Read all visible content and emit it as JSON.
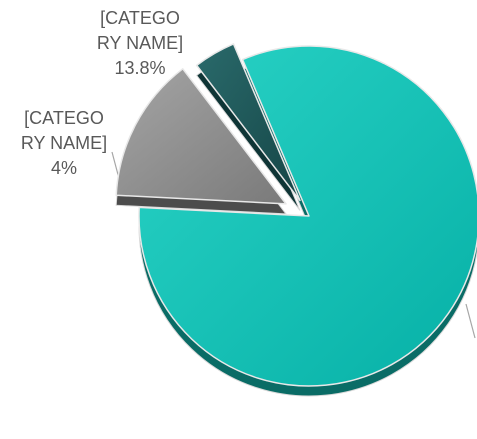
{
  "chart_data": {
    "type": "pie",
    "style": "3d-exploded",
    "title": "",
    "legend": "none",
    "slices": [
      {
        "name": "",
        "value": 82.2,
        "label_line1": "",
        "label_line2": "",
        "label_pct": "",
        "color": "#19C1B4"
      },
      {
        "name": "[CATEGORY NAME]",
        "value": 13.8,
        "label_line1": "[CATEGO",
        "label_line2": "RY NAME]",
        "label_pct": "13.8%",
        "color": "#8C8C8C"
      },
      {
        "name": "[CATEGORY NAME]",
        "value": 4,
        "label_line1": "[CATEGO",
        "label_line2": "RY NAME]",
        "label_pct": "4%",
        "color": "#1F5D5E"
      }
    ]
  }
}
